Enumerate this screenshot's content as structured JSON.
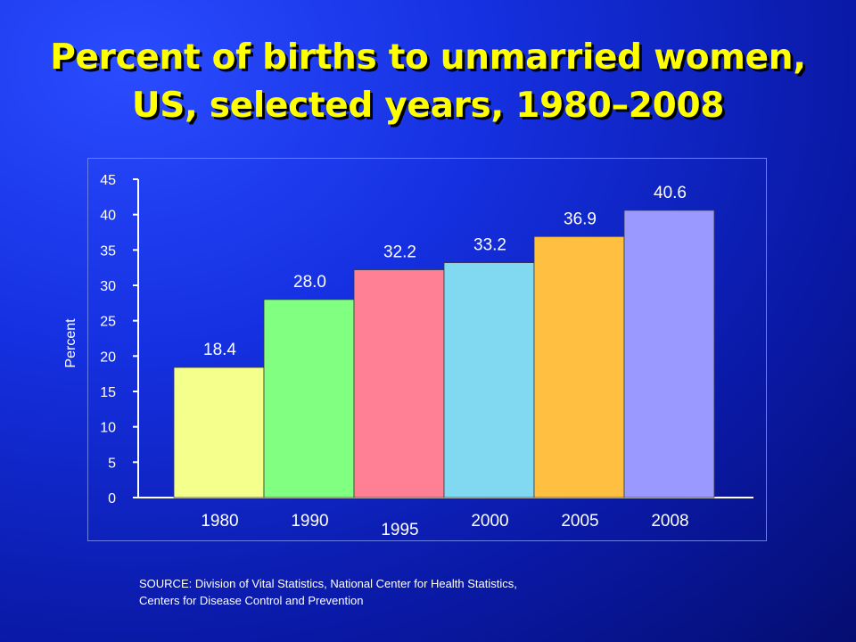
{
  "title_lines": [
    "Percent of births to unmarried women,",
    "US, selected years, 1980–2008"
  ],
  "source_lines": [
    "SOURCE: Division of Vital Statistics, National Center for Health Statistics,",
    "Centers for Disease Control and Prevention"
  ],
  "chart_data": {
    "type": "bar",
    "title": "Percent of births to unmarried women, US, selected years, 1980–2008",
    "categories": [
      "1980",
      "1990",
      "1995",
      "2000",
      "2005",
      "2008"
    ],
    "values": [
      18.4,
      28.0,
      32.2,
      33.2,
      36.9,
      40.6
    ],
    "value_labels": [
      "18.4",
      "28.0",
      "32.2",
      "33.2",
      "36.9",
      "40.6"
    ],
    "ylabel": "Percent",
    "xlabel": "",
    "ylim": [
      0,
      45
    ],
    "yticks": [
      0,
      5,
      10,
      15,
      20,
      25,
      30,
      35,
      40,
      45
    ],
    "colors": [
      "#f5ff8c",
      "#80ff80",
      "#ff8095",
      "#80d9f0",
      "#ffbf40",
      "#9999ff"
    ],
    "grid": false,
    "legend": "none"
  }
}
